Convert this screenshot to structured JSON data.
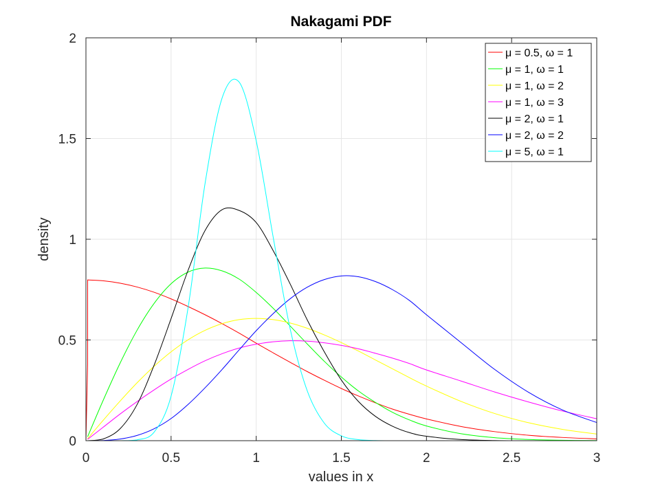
{
  "chart_data": {
    "type": "line",
    "title": "Nakagami PDF",
    "xlabel": "values in x",
    "ylabel": "density",
    "xlim": [
      0,
      3
    ],
    "ylim": [
      0,
      2
    ],
    "xticks": [
      0,
      0.5,
      1,
      1.5,
      2,
      2.5,
      3
    ],
    "xtick_labels": [
      "0",
      "0.5",
      "1",
      "1.5",
      "2",
      "2.5",
      "3"
    ],
    "yticks": [
      0,
      0.5,
      1,
      1.5,
      2
    ],
    "ytick_labels": [
      "0",
      "0.5",
      "1",
      "1.5",
      "2"
    ],
    "grid": true,
    "legend_position": "top-right",
    "x": [
      0.01,
      0.1,
      0.2,
      0.3,
      0.4,
      0.5,
      0.6,
      0.7,
      0.8,
      0.9,
      1.0,
      1.1,
      1.2,
      1.3,
      1.4,
      1.5,
      1.6,
      1.7,
      1.8,
      1.9,
      2.0,
      2.2,
      2.4,
      2.6,
      2.8,
      3.0
    ],
    "series": [
      {
        "name": "μ = 0.5, ω = 1",
        "color": "#ff0000",
        "values": [
          0.798,
          0.794,
          0.782,
          0.763,
          0.737,
          0.704,
          0.666,
          0.625,
          0.581,
          0.534,
          0.484,
          0.436,
          0.389,
          0.343,
          0.3,
          0.259,
          0.222,
          0.188,
          0.157,
          0.131,
          0.108,
          0.071,
          0.045,
          0.027,
          0.016,
          0.009
        ]
      },
      {
        "name": "μ = 1, ω = 1",
        "color": "#00ff00",
        "values": [
          0.02,
          0.198,
          0.384,
          0.548,
          0.681,
          0.779,
          0.837,
          0.857,
          0.843,
          0.802,
          0.736,
          0.657,
          0.569,
          0.48,
          0.394,
          0.316,
          0.247,
          0.19,
          0.141,
          0.103,
          0.073,
          0.035,
          0.015,
          0.006,
          0.002,
          0.001
        ]
      },
      {
        "name": "μ = 1, ω = 2",
        "color": "#ffff00",
        "values": [
          0.01,
          0.1,
          0.196,
          0.287,
          0.369,
          0.441,
          0.501,
          0.548,
          0.581,
          0.601,
          0.607,
          0.601,
          0.584,
          0.558,
          0.525,
          0.487,
          0.445,
          0.401,
          0.357,
          0.313,
          0.271,
          0.196,
          0.135,
          0.089,
          0.056,
          0.033
        ]
      },
      {
        "name": "μ = 1, ω = 3",
        "color": "#ff00ff",
        "values": [
          0.007,
          0.066,
          0.132,
          0.194,
          0.252,
          0.306,
          0.354,
          0.397,
          0.432,
          0.46,
          0.479,
          0.491,
          0.496,
          0.494,
          0.486,
          0.473,
          0.456,
          0.434,
          0.41,
          0.383,
          0.351,
          0.297,
          0.242,
          0.192,
          0.147,
          0.109
        ]
      },
      {
        "name": "μ = 2, ω = 1",
        "color": "#000000",
        "values": [
          0.0,
          0.008,
          0.059,
          0.179,
          0.374,
          0.606,
          0.846,
          1.044,
          1.147,
          1.143,
          1.083,
          0.943,
          0.777,
          0.599,
          0.441,
          0.301,
          0.195,
          0.121,
          0.072,
          0.04,
          0.022,
          0.006,
          0.001,
          0.0,
          0.0,
          0.0
        ]
      },
      {
        "name": "μ = 2, ω = 2",
        "color": "#0000ff",
        "values": [
          0.0,
          0.001,
          0.008,
          0.026,
          0.059,
          0.11,
          0.18,
          0.263,
          0.354,
          0.451,
          0.546,
          0.631,
          0.705,
          0.762,
          0.8,
          0.818,
          0.814,
          0.79,
          0.75,
          0.696,
          0.625,
          0.489,
          0.354,
          0.24,
          0.152,
          0.09
        ]
      },
      {
        "name": "μ = 5, ω = 1",
        "color": "#00ffff",
        "values": [
          0.0,
          0.0,
          0.0,
          0.004,
          0.042,
          0.221,
          0.661,
          1.279,
          1.702,
          1.78,
          1.489,
          1.009,
          0.553,
          0.247,
          0.087,
          0.024,
          0.005,
          0.001,
          0.0,
          0.0,
          0.0,
          0.0,
          0.0,
          0.0,
          0.0,
          0.0
        ]
      }
    ]
  }
}
